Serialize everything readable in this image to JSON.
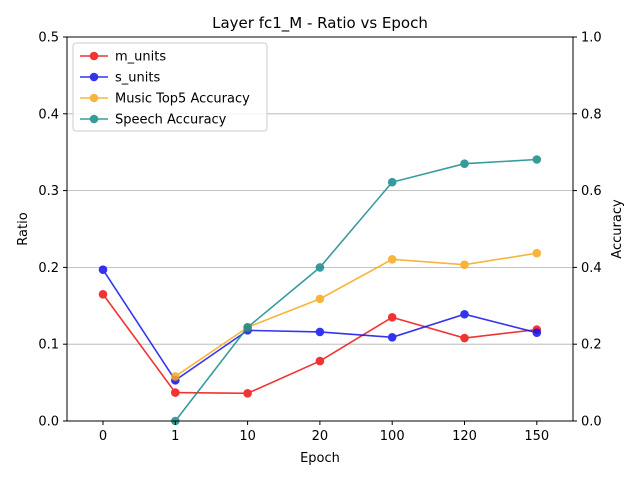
{
  "chart_data": {
    "type": "line",
    "title": "Layer fc1_M - Ratio vs Epoch",
    "xlabel": "Epoch",
    "ylabel": "Ratio",
    "ylabel_right": "Accuracy",
    "categories": [
      "0",
      "1",
      "10",
      "20",
      "100",
      "120",
      "150"
    ],
    "ylim": [
      0,
      0.5
    ],
    "yticks": [
      "0.0",
      "0.1",
      "0.2",
      "0.3",
      "0.4",
      "0.5"
    ],
    "ylim_right": [
      0,
      1.0
    ],
    "yticks_right": [
      "0.0",
      "0.2",
      "0.4",
      "0.6",
      "0.8",
      "1.0"
    ],
    "grid": "horizontal (left axis)",
    "legend_position": "upper-left",
    "series": [
      {
        "name": "m_units",
        "axis": "left",
        "color": "#ee1111",
        "values": [
          0.165,
          0.037,
          0.036,
          0.078,
          0.135,
          0.108,
          0.119
        ]
      },
      {
        "name": "s_units",
        "axis": "left",
        "color": "#1111ee",
        "values": [
          0.197,
          0.053,
          0.118,
          0.116,
          0.109,
          0.139,
          0.115
        ]
      },
      {
        "name": "Music Top5 Accuracy",
        "axis": "right",
        "color": "#f8a81c",
        "values": [
          null,
          0.116,
          0.244,
          0.318,
          0.421,
          0.407,
          0.437
        ]
      },
      {
        "name": "Speech Accuracy",
        "axis": "right",
        "color": "#168a8a",
        "values": [
          null,
          0.0,
          0.244,
          0.4,
          0.622,
          0.67,
          0.681
        ]
      }
    ]
  }
}
